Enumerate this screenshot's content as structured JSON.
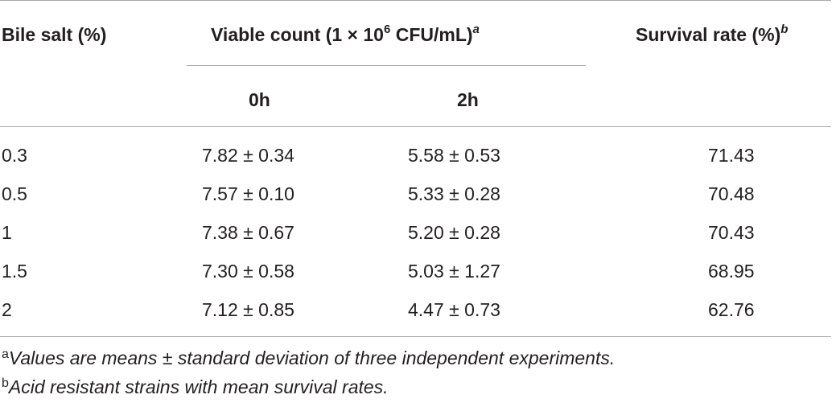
{
  "table": {
    "headers": {
      "bile_salt": "Bile salt (%)",
      "viable_count_prefix": "Viable count (1 × 10",
      "viable_count_exp": "6",
      "viable_count_suffix": " CFU/mL)",
      "viable_count_mark": "a",
      "survival_rate": "Survival rate (%)",
      "survival_rate_mark": "b",
      "sub_0h": "0h",
      "sub_2h": "2h"
    },
    "rows": [
      {
        "bile_salt": "0.3",
        "count_0h": "7.82 ± 0.34",
        "count_2h": "5.58 ± 0.53",
        "survival": "71.43"
      },
      {
        "bile_salt": "0.5",
        "count_0h": "7.57 ± 0.10",
        "count_2h": "5.33 ± 0.28",
        "survival": "70.48"
      },
      {
        "bile_salt": "1",
        "count_0h": "7.38 ± 0.67",
        "count_2h": "5.20 ± 0.28",
        "survival": "70.43"
      },
      {
        "bile_salt": "1.5",
        "count_0h": "7.30 ± 0.58",
        "count_2h": "5.03 ± 1.27",
        "survival": "68.95"
      },
      {
        "bile_salt": "2",
        "count_0h": "7.12 ± 0.85",
        "count_2h": "4.47 ± 0.73",
        "survival": "62.76"
      }
    ]
  },
  "footnotes": [
    {
      "mark": "a",
      "text": "Values are means ± standard deviation of three independent experiments."
    },
    {
      "mark": "b",
      "text": "Acid resistant strains with mean survival rates."
    }
  ]
}
